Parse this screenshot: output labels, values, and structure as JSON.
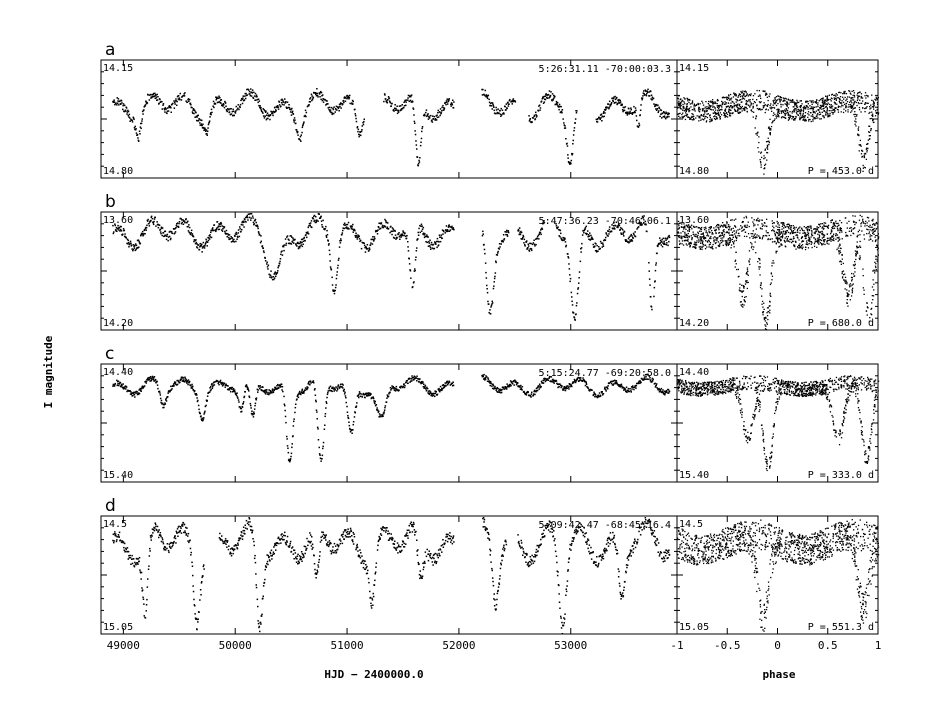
{
  "chart_data": {
    "type": "scatter",
    "ylabel": "I magnitude",
    "xlabel_time": "HJD − 2400000.0",
    "xlabel_phase": "phase",
    "time_xlim": [
      48800,
      53950
    ],
    "time_ticks": [
      49000,
      50000,
      51000,
      52000,
      53000
    ],
    "phase_xlim": [
      -1,
      1
    ],
    "phase_ticks": [
      -1,
      -0.5,
      0,
      0.5,
      1
    ],
    "phase_tick_labels": [
      "-1",
      "-0.5",
      "0",
      "0.5",
      "1"
    ],
    "panels": [
      {
        "letter": "a",
        "coords": "5:26:31.11  -70:00:03.3",
        "ylim": [
          14.15,
          14.8
        ],
        "ylim_labels": [
          "14.15",
          "14.80"
        ],
        "period": "P = 453.0 d",
        "base": 14.4,
        "amp": 0.05,
        "gaps": [
          [
            51150,
            51320
          ],
          [
            51950,
            52200
          ],
          [
            52500,
            52620
          ],
          [
            53050,
            53220
          ]
        ],
        "dips": [
          [
            49130,
            14.52,
            30
          ],
          [
            49740,
            14.5,
            35
          ],
          [
            50570,
            14.52,
            40
          ],
          [
            51100,
            14.52,
            30
          ],
          [
            51630,
            14.78,
            35
          ],
          [
            52550,
            14.7,
            30
          ],
          [
            52990,
            14.72,
            45
          ],
          [
            53600,
            14.55,
            20
          ]
        ],
        "phase_dips": [
          [
            -0.15,
            14.75,
            0.07
          ],
          [
            0.85,
            14.73,
            0.07
          ]
        ]
      },
      {
        "letter": "b",
        "coords": "5:47:36.23  -70:46:06.1",
        "ylim": [
          13.6,
          14.2
        ],
        "ylim_labels": [
          "13.60",
          "14.20"
        ],
        "period": "P = 680.0 d",
        "base": 13.7,
        "amp": 0.05,
        "gaps": [
          [
            51950,
            52200
          ],
          [
            52440,
            52520
          ],
          [
            52760,
            52860
          ]
        ],
        "dips": [
          [
            50350,
            13.9,
            90
          ],
          [
            50880,
            13.98,
            40
          ],
          [
            51580,
            14.03,
            40
          ],
          [
            52270,
            14.13,
            50
          ],
          [
            53030,
            14.18,
            50
          ],
          [
            53720,
            14.15,
            35
          ]
        ],
        "phase_dips": [
          [
            -0.35,
            14.05,
            0.08
          ],
          [
            -0.12,
            14.18,
            0.07
          ],
          [
            0.7,
            14.05,
            0.08
          ],
          [
            0.9,
            14.15,
            0.07
          ]
        ]
      },
      {
        "letter": "c",
        "coords": "5:15:24.77  -69:20:58.0",
        "ylim": [
          14.4,
          15.4
        ],
        "ylim_labels": [
          "14.40",
          "15.40"
        ],
        "period": "P = 333.0 d",
        "base": 14.58,
        "amp": 0.05,
        "gaps": [
          [
            51950,
            52200
          ]
        ],
        "dips": [
          [
            49350,
            14.75,
            40
          ],
          [
            49700,
            14.78,
            40
          ],
          [
            50050,
            14.8,
            35
          ],
          [
            50150,
            14.9,
            35
          ],
          [
            50480,
            15.22,
            40
          ],
          [
            50760,
            15.28,
            40
          ],
          [
            51030,
            15.0,
            45
          ],
          [
            51300,
            14.88,
            60
          ]
        ],
        "phase_dips": [
          [
            -0.3,
            15.05,
            0.08
          ],
          [
            -0.1,
            15.28,
            0.07
          ],
          [
            0.6,
            15.05,
            0.08
          ],
          [
            0.88,
            15.22,
            0.07
          ]
        ]
      },
      {
        "letter": "d",
        "coords": "5:09:42.47  -68:45:16.4",
        "ylim": [
          14.5,
          15.05
        ],
        "ylim_labels": [
          "14.5",
          "15.05"
        ],
        "period": "P = 551.3 d",
        "base": 14.62,
        "amp": 0.06,
        "gaps": [
          [
            49720,
            49850
          ],
          [
            51950,
            52200
          ],
          [
            52420,
            52520
          ]
        ],
        "dips": [
          [
            49190,
            14.98,
            35
          ],
          [
            49650,
            14.93,
            40
          ],
          [
            50210,
            15.02,
            40
          ],
          [
            50720,
            14.85,
            35
          ],
          [
            51220,
            14.85,
            35
          ],
          [
            51650,
            14.82,
            35
          ],
          [
            52320,
            14.88,
            40
          ],
          [
            52920,
            15.0,
            45
          ],
          [
            53450,
            14.88,
            40
          ]
        ],
        "phase_dips": [
          [
            -0.15,
            15.0,
            0.08
          ],
          [
            0.85,
            14.96,
            0.08
          ]
        ]
      }
    ]
  }
}
